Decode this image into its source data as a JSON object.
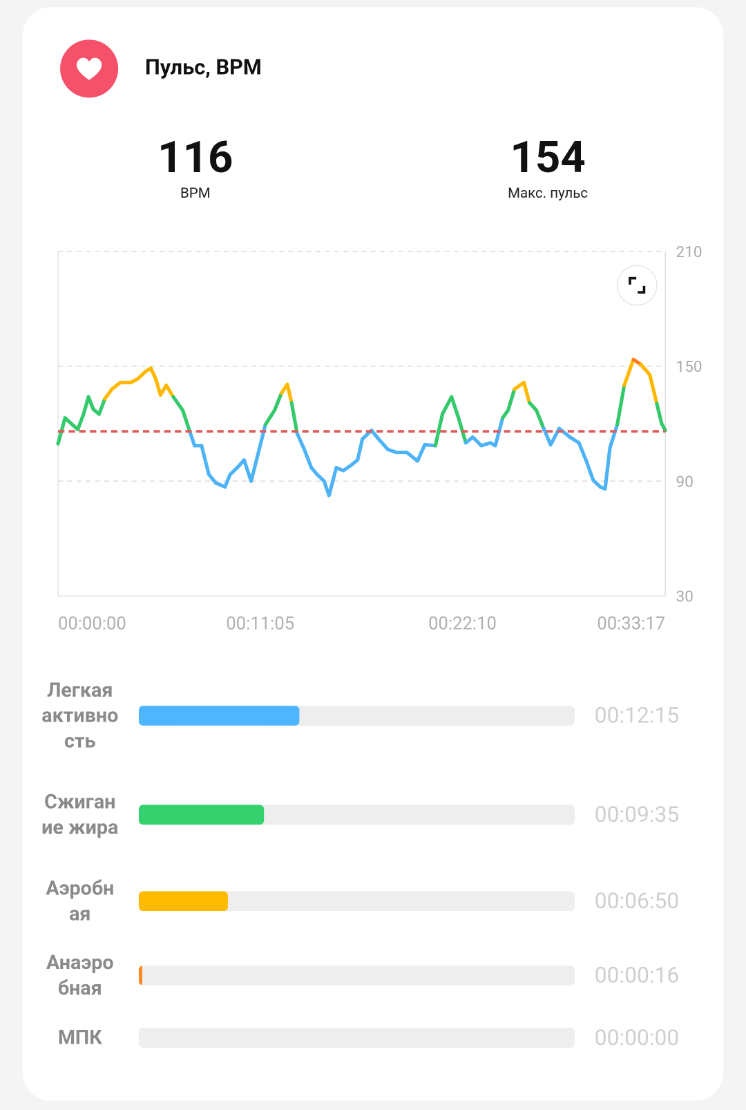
{
  "header": {
    "title": "Пульс, BPM"
  },
  "stats": [
    {
      "value": 116,
      "label": "BPM"
    },
    {
      "value": 154,
      "label": "Макс. пульс"
    }
  ],
  "chart_data": {
    "type": "line",
    "x": [
      0,
      23,
      47,
      65,
      84,
      100,
      116,
      135,
      154,
      177,
      205,
      240,
      263,
      286,
      305,
      321,
      337,
      356,
      379,
      410,
      433,
      449,
      472,
      496,
      519,
      549,
      566,
      589,
      612,
      635,
      659,
      682,
      712,
      735,
      754,
      768,
      786,
      810,
      833,
      852,
      875,
      891,
      915,
      938,
      961,
      985,
      1001,
      1031,
      1054,
      1085,
      1113,
      1147,
      1182,
      1206,
      1241,
      1264,
      1294,
      1317,
      1341,
      1364,
      1392,
      1422,
      1438,
      1462,
      1480,
      1501,
      1532,
      1550,
      1573,
      1597,
      1620,
      1648,
      1683,
      1713,
      1736,
      1760,
      1783,
      1799,
      1815,
      1839,
      1862,
      1892,
      1916,
      1946,
      1969,
      1985,
      1997
    ],
    "series": [
      {
        "values": [
          109.5,
          123,
          119.5,
          117,
          125,
          134,
          127.5,
          125,
          133,
          138,
          141.5,
          141.5,
          143.5,
          147,
          149,
          143.5,
          135,
          140,
          134,
          127,
          116,
          108.5,
          108.5,
          93.5,
          89,
          87,
          93.5,
          97,
          101,
          90,
          105,
          119.5,
          127,
          136,
          140.5,
          131,
          115,
          106.5,
          97,
          93.5,
          90,
          82.5,
          97,
          95.5,
          98,
          101,
          112,
          116.5,
          112,
          106.5,
          105,
          105,
          100.5,
          109,
          108.5,
          125,
          134,
          123,
          110,
          113,
          108.5,
          110,
          108.5,
          123,
          127,
          138,
          141.5,
          131,
          127,
          117.5,
          109,
          117.5,
          113,
          110,
          101,
          90.5,
          87,
          86,
          107.5,
          119.5,
          140,
          153.5,
          151,
          145.5,
          130.5,
          120,
          116.5
        ]
      }
    ],
    "xlim": [
      0,
      1997
    ],
    "xticks": [
      {
        "value": 0,
        "label": "00:00:00"
      },
      {
        "value": 665,
        "label": "00:11:05"
      },
      {
        "value": 1330,
        "label": "00:22:10"
      },
      {
        "value": 1997,
        "label": "00:33:17"
      }
    ],
    "ylim": [
      30,
      210
    ],
    "yticks": [
      30,
      90,
      150,
      210
    ],
    "grid": true,
    "color_bands": [
      {
        "from": 30,
        "color": "#4db3f5"
      },
      {
        "from": 116,
        "color": "#34c96a"
      },
      {
        "from": 133,
        "color": "#ffb800"
      },
      {
        "from": 152,
        "color": "#ff7a1a"
      }
    ],
    "reference_line_color": "#e05a5a"
  },
  "zones": [
    {
      "name": "Легкая активность",
      "value": 735,
      "label": "00:12:15",
      "color": "#4db6ff"
    },
    {
      "name": "Сжигание жира",
      "value": 575,
      "label": "00:09:35",
      "color": "#34d16e"
    },
    {
      "name": "Аэробная",
      "value": 410,
      "label": "00:06:50",
      "color": "#ffbb00"
    },
    {
      "name": "Анаэробная",
      "value": 16,
      "label": "00:00:16",
      "color": "#ff8a1f"
    },
    {
      "name": "МПК",
      "value": 0,
      "label": "00:00:00",
      "color": "#e05a5a"
    }
  ]
}
